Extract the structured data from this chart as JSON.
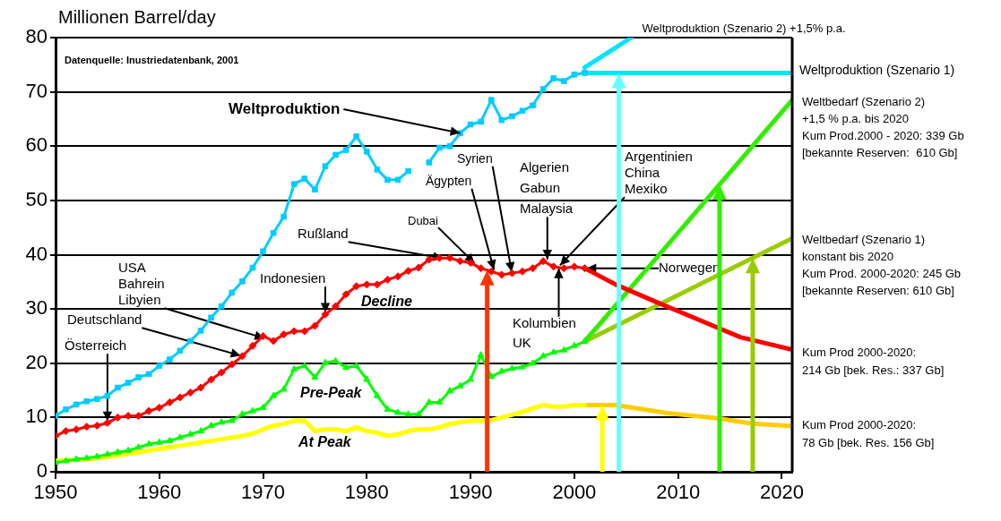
{
  "chart_data": {
    "type": "line",
    "ylabel": "Millionen Barrel/day",
    "x": [
      1950,
      1951,
      1952,
      1953,
      1954,
      1955,
      1956,
      1957,
      1958,
      1959,
      1960,
      1961,
      1962,
      1963,
      1964,
      1965,
      1966,
      1967,
      1968,
      1969,
      1970,
      1971,
      1972,
      1973,
      1974,
      1975,
      1976,
      1977,
      1978,
      1979,
      1980,
      1981,
      1982,
      1983,
      1984,
      1985,
      1986,
      1987,
      1988,
      1989,
      1990,
      1991,
      1992,
      1993,
      1994,
      1995,
      1996,
      1997,
      1998,
      1999,
      2000,
      2001
    ],
    "series": [
      {
        "name": "Weltproduktion",
        "color": "#00ccff",
        "marker": "square",
        "values": [
          10.3,
          11.5,
          12.4,
          13,
          13.4,
          14,
          15.5,
          16.4,
          17.4,
          18,
          19.5,
          20.7,
          22.3,
          24.1,
          26,
          28.4,
          30.5,
          33,
          35.1,
          37.6,
          40.6,
          44,
          47,
          53,
          54,
          52,
          56.3,
          58.4,
          59.3,
          61.8,
          59,
          55.7,
          53.8,
          53.8,
          55.4,
          null,
          57,
          59.7,
          60,
          62.4,
          64,
          64.5,
          68.5,
          64.8,
          65.5,
          66.5,
          67.5,
          70.5,
          72.5,
          72,
          73.2,
          73.5
        ]
      },
      {
        "type": "line",
        "color": "#00e5ff",
        "marker": "none",
        "x": [
          2001,
          2005.5
        ],
        "values": [
          74.5,
          80
        ]
      },
      {
        "type": "line",
        "color": "#00e5ff",
        "marker": "none",
        "x": [
          2001,
          2021
        ],
        "values": [
          73.5,
          73.5
        ]
      },
      {
        "name": "Decline",
        "color": "#ff0000",
        "marker": "diamond",
        "values": [
          6.6,
          7.5,
          7.8,
          8.3,
          8.5,
          9,
          10,
          10.3,
          10.3,
          11.2,
          11.8,
          12.8,
          13.7,
          14.6,
          15.5,
          17,
          18.3,
          19.8,
          21.3,
          23.2,
          25,
          24.1,
          25.3,
          25.9,
          25.9,
          26.9,
          29,
          30.5,
          32.7,
          34.2,
          34.5,
          34.5,
          35.4,
          36,
          37,
          37.6,
          39.1,
          39.4,
          39.4,
          38.8,
          38.5,
          37.5,
          36.9,
          36.3,
          36.6,
          36.9,
          37.5,
          38.8,
          37.8,
          37.5,
          37.8,
          37.5
        ]
      },
      {
        "type": "line",
        "color": "#ff0000",
        "marker": "none",
        "x": [
          2001,
          2004,
          2008,
          2012,
          2016,
          2021
        ],
        "values": [
          37.5,
          34.5,
          31.2,
          28,
          24.8,
          22.5
        ]
      },
      {
        "name": "Pre-Peak",
        "color": "#00ff00",
        "marker": "triangle",
        "values": [
          1.7,
          2,
          2.3,
          2.5,
          2.8,
          3.2,
          3.6,
          3.9,
          4.5,
          5.1,
          5.4,
          5.7,
          6.3,
          6.9,
          7.5,
          8.5,
          9.1,
          9.4,
          10.6,
          11.2,
          11.8,
          14,
          15.2,
          18.9,
          19.5,
          17.4,
          20.1,
          20.4,
          19.2,
          19.5,
          17,
          14,
          11.5,
          10.9,
          10.6,
          10.6,
          12.8,
          12.8,
          14.9,
          15.8,
          17,
          21.5,
          17.5,
          18.5,
          19,
          19.3,
          20,
          21.3,
          22,
          22.4,
          23.2,
          24
        ]
      },
      {
        "type": "line",
        "color": "#33ee00",
        "marker": "none",
        "x": [
          2001,
          2021
        ],
        "values": [
          24,
          68.5
        ]
      },
      {
        "type": "line",
        "color": "#99cc00",
        "marker": "none",
        "x": [
          2001,
          2021
        ],
        "values": [
          24,
          43
        ]
      },
      {
        "name": "At Peak",
        "color": "#ffff00",
        "marker": "none",
        "values": [
          2,
          2.1,
          2.2,
          2.3,
          2.5,
          2.7,
          3,
          3.3,
          3.6,
          3.9,
          4.2,
          4.5,
          4.8,
          5.1,
          5.4,
          5.7,
          6,
          6.3,
          6.6,
          7,
          7.8,
          8.5,
          8.8,
          9.4,
          9.4,
          7.5,
          7.8,
          7.8,
          7.5,
          8.2,
          7.5,
          7.2,
          6.6,
          6.9,
          7.5,
          7.8,
          7.8,
          8.2,
          8.8,
          9.1,
          9.4,
          9.4,
          9.5,
          10,
          10.5,
          11,
          11.7,
          12.3,
          12,
          12,
          12.3,
          12.3
        ]
      },
      {
        "type": "line",
        "color": "#ffcc00",
        "marker": "none",
        "x": [
          2001,
          2004,
          2009,
          2014,
          2017,
          2021
        ],
        "values": [
          12.3,
          12.3,
          10.8,
          9.8,
          8.9,
          8.4
        ]
      }
    ],
    "xlim": [
      1950,
      2021
    ],
    "xticks": [
      1950,
      1960,
      1970,
      1980,
      1990,
      2000,
      2010,
      2020
    ],
    "ylim": [
      0,
      80
    ],
    "yticks": [
      0,
      10,
      20,
      30,
      40,
      50,
      60,
      70,
      80
    ],
    "grid": "y",
    "ref_lines": [
      {
        "axis": "x",
        "value": 1991.6,
        "color": "#ff3300"
      },
      {
        "axis": "x",
        "value": 2002.7,
        "color": "#ffff00"
      },
      {
        "axis": "x",
        "value": 2004.3,
        "color": "#66ffff"
      },
      {
        "axis": "x",
        "value": 2014,
        "color": "#33ee00"
      },
      {
        "axis": "x",
        "value": 2017.2,
        "color": "#99cc00"
      }
    ],
    "annotations": [
      "Datenquelle: Inustriedatenbank, 2001",
      {
        "text": "Österreich",
        "x": 1955,
        "y": 9
      },
      {
        "text": "Deutschland",
        "x": 1968,
        "y": 21.3
      },
      {
        "text": "USA\nBahrein\nLibyien",
        "x": 1970.3,
        "y": 24.5
      },
      {
        "text": "Indonesien",
        "x": 1976,
        "y": 29
      },
      {
        "text": "Rußland",
        "x": 1987.5,
        "y": 39.3
      },
      {
        "text": "Dubai",
        "x": 1990.5,
        "y": 38.2
      },
      {
        "text": "Ägypten",
        "x": 1992.3,
        "y": 36.9
      },
      {
        "text": "Syrien",
        "x": 1994,
        "y": 36.5
      },
      {
        "text": "Algerien\nGabun\nMalaysia",
        "x": 1997.4,
        "y": 38.8
      },
      {
        "text": "Argentinien\nChina\nMexiko",
        "x": 1998.5,
        "y": 37.8
      },
      {
        "text": "Norwegen",
        "x": 2001,
        "y": 37.5
      },
      {
        "text": "Kolumbien\nUK",
        "x": 1998.5,
        "y": 37.8
      },
      {
        "text": "Weltproduktion (Szenario 2) +1,5% p.a.",
        "x": 2005.5,
        "y": 80
      },
      {
        "text": "Weltproduktion (Szenario 1)",
        "x": 2021,
        "y": 73.5
      },
      {
        "text": "Weltbedarf (Szenario 2)\n+1,5 % p.a. bis 2020\nKum Prod.2000 - 2020: 339 Gb\n[bekannte Reserven:  610 Gb]",
        "x": 2021,
        "y": 68.5
      },
      {
        "text": "Weltbedarf (Szenario 1)\nkonstant bis 2020\nKum Prod. 2000-2020: 245 Gb\n[bekannte Reserven: 610 Gb]",
        "x": 2021,
        "y": 43
      },
      {
        "text": "Kum Prod 2000-2020:\n214 Gb [bek. Res.: 337 Gb]",
        "x": 2021,
        "y": 22.5
      },
      {
        "text": "Kum Prod 2000-2020:\n78 Gb [bek. Res. 156 Gb]",
        "x": 2021,
        "y": 8.5
      }
    ]
  }
}
